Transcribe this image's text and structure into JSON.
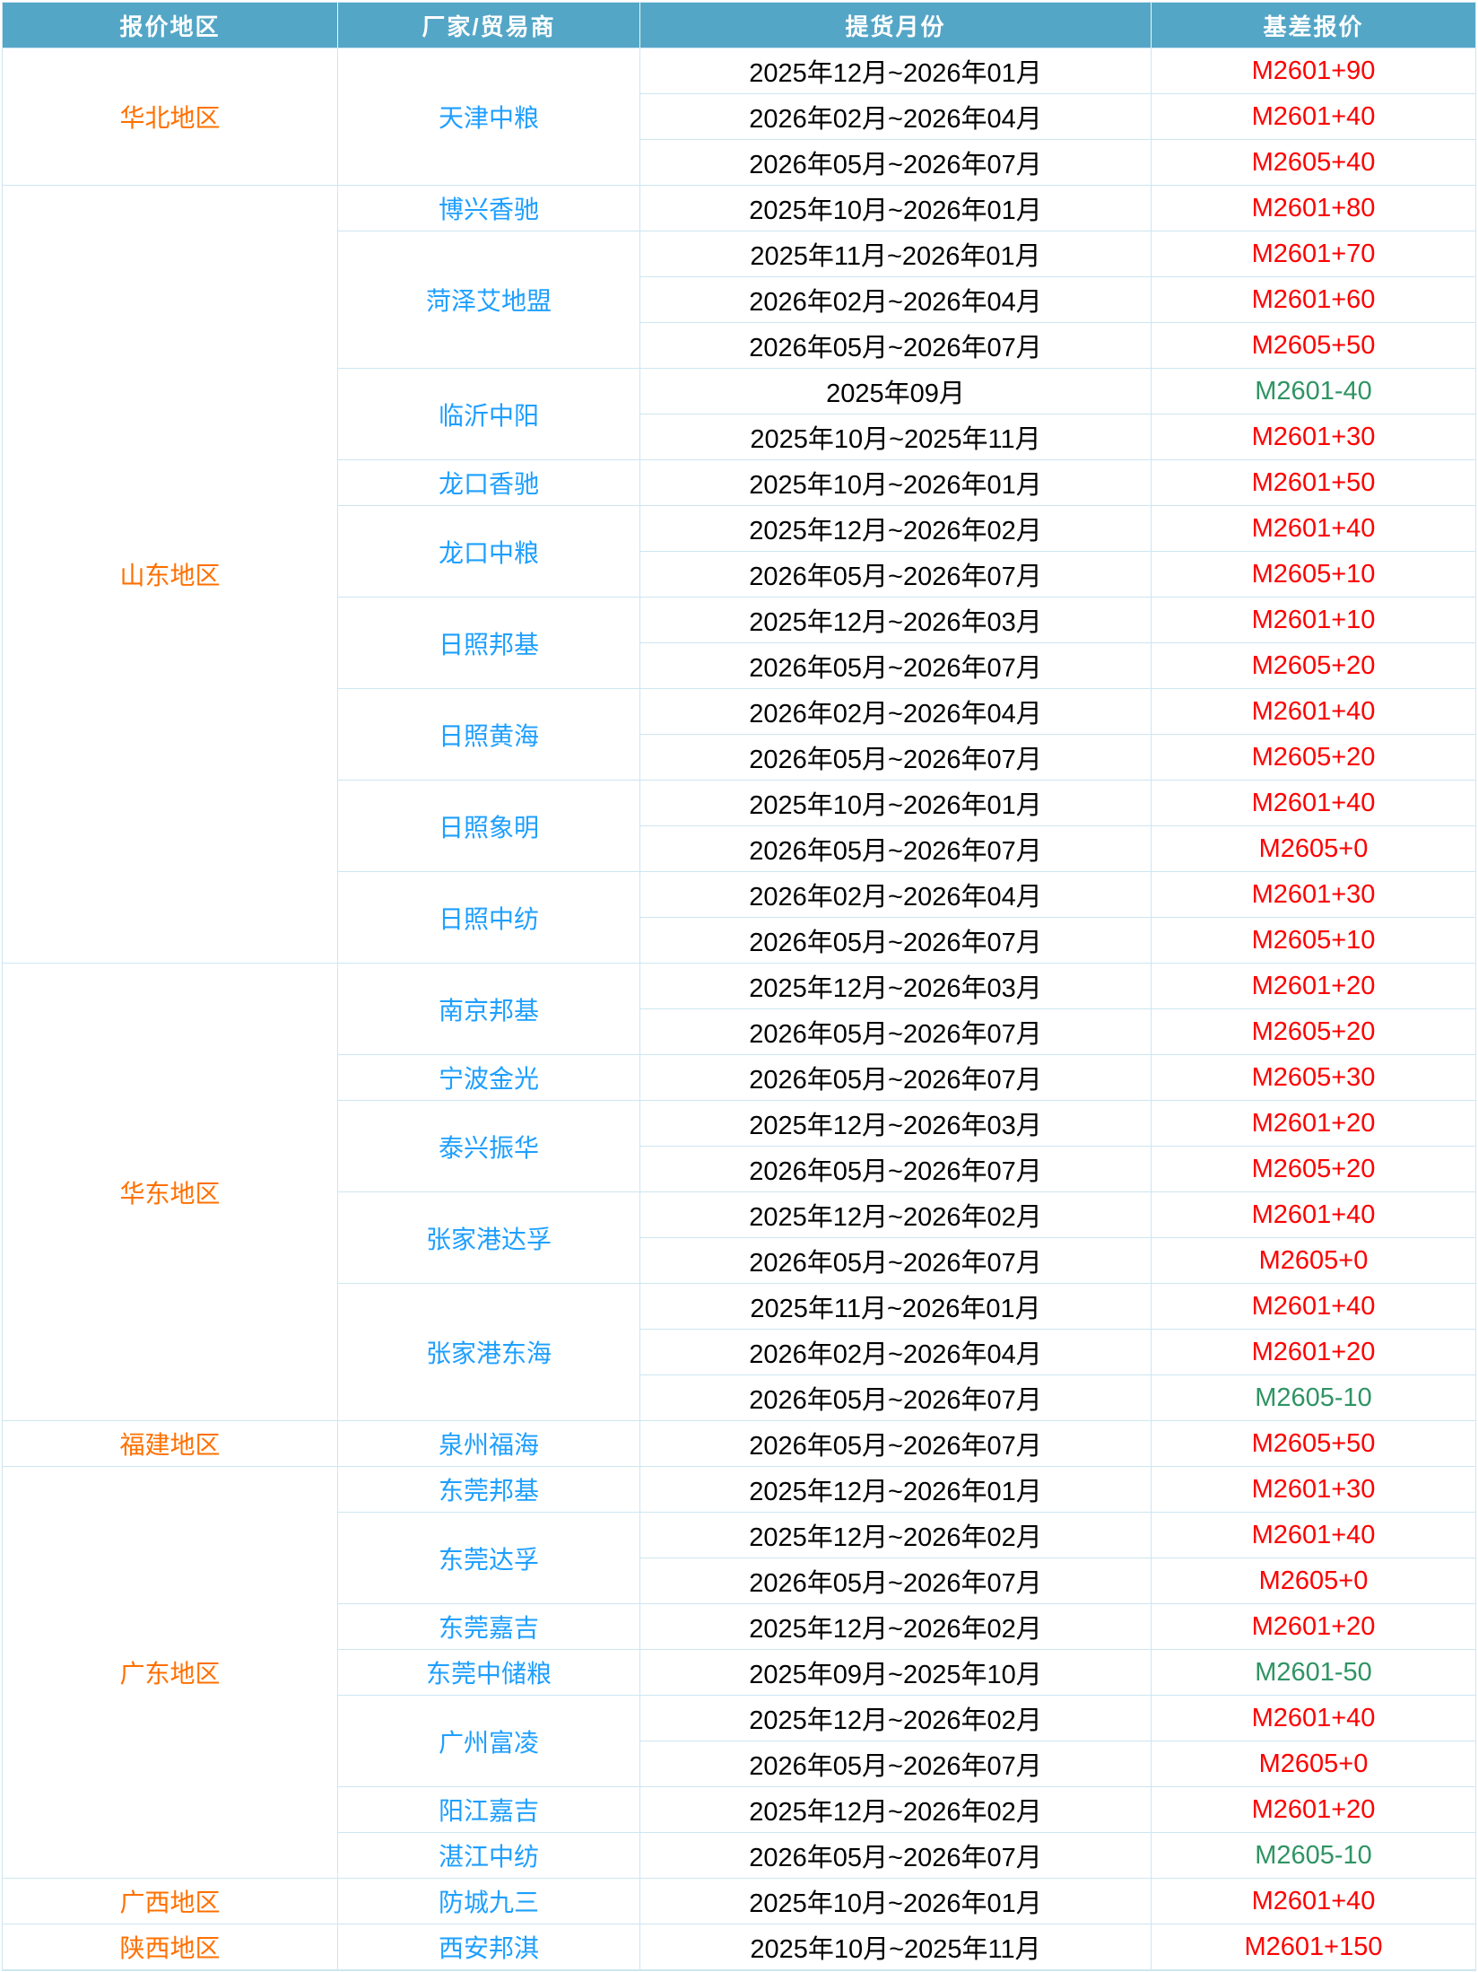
{
  "table": {
    "columns": [
      {
        "label": "报价地区"
      },
      {
        "label": "厂家/贸易商"
      },
      {
        "label": "提货月份"
      },
      {
        "label": "基差报价"
      }
    ],
    "colors": {
      "header_bg": "#54a6c7",
      "header_text": "#ffffff",
      "region_text": "#ff7000",
      "supplier_text": "#1e9fff",
      "month_text": "#000000",
      "basis_positive": "#fe0000",
      "basis_negative": "#2f9464",
      "grid_line": "#cde6f1"
    },
    "regions": [
      {
        "name": "华北地区",
        "suppliers": [
          {
            "name": "天津中粮",
            "quotes": [
              {
                "month": "2025年12月~2026年01月",
                "basis": "M2601+90",
                "tone": "positive"
              },
              {
                "month": "2026年02月~2026年04月",
                "basis": "M2601+40",
                "tone": "positive"
              },
              {
                "month": "2026年05月~2026年07月",
                "basis": "M2605+40",
                "tone": "positive"
              }
            ]
          }
        ]
      },
      {
        "name": "山东地区",
        "suppliers": [
          {
            "name": "博兴香驰",
            "quotes": [
              {
                "month": "2025年10月~2026年01月",
                "basis": "M2601+80",
                "tone": "positive"
              }
            ]
          },
          {
            "name": "菏泽艾地盟",
            "quotes": [
              {
                "month": "2025年11月~2026年01月",
                "basis": "M2601+70",
                "tone": "positive"
              },
              {
                "month": "2026年02月~2026年04月",
                "basis": "M2601+60",
                "tone": "positive"
              },
              {
                "month": "2026年05月~2026年07月",
                "basis": "M2605+50",
                "tone": "positive"
              }
            ]
          },
          {
            "name": "临沂中阳",
            "quotes": [
              {
                "month": "2025年09月",
                "basis": "M2601-40",
                "tone": "negative"
              },
              {
                "month": "2025年10月~2025年11月",
                "basis": "M2601+30",
                "tone": "positive"
              }
            ]
          },
          {
            "name": "龙口香驰",
            "quotes": [
              {
                "month": "2025年10月~2026年01月",
                "basis": "M2601+50",
                "tone": "positive"
              }
            ]
          },
          {
            "name": "龙口中粮",
            "quotes": [
              {
                "month": "2025年12月~2026年02月",
                "basis": "M2601+40",
                "tone": "positive"
              },
              {
                "month": "2026年05月~2026年07月",
                "basis": "M2605+10",
                "tone": "positive"
              }
            ]
          },
          {
            "name": "日照邦基",
            "quotes": [
              {
                "month": "2025年12月~2026年03月",
                "basis": "M2601+10",
                "tone": "positive"
              },
              {
                "month": "2026年05月~2026年07月",
                "basis": "M2605+20",
                "tone": "positive"
              }
            ]
          },
          {
            "name": "日照黄海",
            "quotes": [
              {
                "month": "2026年02月~2026年04月",
                "basis": "M2601+40",
                "tone": "positive"
              },
              {
                "month": "2026年05月~2026年07月",
                "basis": "M2605+20",
                "tone": "positive"
              }
            ]
          },
          {
            "name": "日照象明",
            "quotes": [
              {
                "month": "2025年10月~2026年01月",
                "basis": "M2601+40",
                "tone": "positive"
              },
              {
                "month": "2026年05月~2026年07月",
                "basis": "M2605+0",
                "tone": "positive"
              }
            ]
          },
          {
            "name": "日照中纺",
            "quotes": [
              {
                "month": "2026年02月~2026年04月",
                "basis": "M2601+30",
                "tone": "positive"
              },
              {
                "month": "2026年05月~2026年07月",
                "basis": "M2605+10",
                "tone": "positive"
              }
            ]
          }
        ]
      },
      {
        "name": "华东地区",
        "suppliers": [
          {
            "name": "南京邦基",
            "quotes": [
              {
                "month": "2025年12月~2026年03月",
                "basis": "M2601+20",
                "tone": "positive"
              },
              {
                "month": "2026年05月~2026年07月",
                "basis": "M2605+20",
                "tone": "positive"
              }
            ]
          },
          {
            "name": "宁波金光",
            "quotes": [
              {
                "month": "2026年05月~2026年07月",
                "basis": "M2605+30",
                "tone": "positive"
              }
            ]
          },
          {
            "name": "泰兴振华",
            "quotes": [
              {
                "month": "2025年12月~2026年03月",
                "basis": "M2601+20",
                "tone": "positive"
              },
              {
                "month": "2026年05月~2026年07月",
                "basis": "M2605+20",
                "tone": "positive"
              }
            ]
          },
          {
            "name": "张家港达孚",
            "quotes": [
              {
                "month": "2025年12月~2026年02月",
                "basis": "M2601+40",
                "tone": "positive"
              },
              {
                "month": "2026年05月~2026年07月",
                "basis": "M2605+0",
                "tone": "positive"
              }
            ]
          },
          {
            "name": "张家港东海",
            "quotes": [
              {
                "month": "2025年11月~2026年01月",
                "basis": "M2601+40",
                "tone": "positive"
              },
              {
                "month": "2026年02月~2026年04月",
                "basis": "M2601+20",
                "tone": "positive"
              },
              {
                "month": "2026年05月~2026年07月",
                "basis": "M2605-10",
                "tone": "negative"
              }
            ]
          }
        ]
      },
      {
        "name": "福建地区",
        "suppliers": [
          {
            "name": "泉州福海",
            "quotes": [
              {
                "month": "2026年05月~2026年07月",
                "basis": "M2605+50",
                "tone": "positive"
              }
            ]
          }
        ]
      },
      {
        "name": "广东地区",
        "suppliers": [
          {
            "name": "东莞邦基",
            "quotes": [
              {
                "month": "2025年12月~2026年01月",
                "basis": "M2601+30",
                "tone": "positive"
              }
            ]
          },
          {
            "name": "东莞达孚",
            "quotes": [
              {
                "month": "2025年12月~2026年02月",
                "basis": "M2601+40",
                "tone": "positive"
              },
              {
                "month": "2026年05月~2026年07月",
                "basis": "M2605+0",
                "tone": "positive"
              }
            ]
          },
          {
            "name": "东莞嘉吉",
            "quotes": [
              {
                "month": "2025年12月~2026年02月",
                "basis": "M2601+20",
                "tone": "positive"
              }
            ]
          },
          {
            "name": "东莞中储粮",
            "quotes": [
              {
                "month": "2025年09月~2025年10月",
                "basis": "M2601-50",
                "tone": "negative"
              }
            ]
          },
          {
            "name": "广州富凌",
            "quotes": [
              {
                "month": "2025年12月~2026年02月",
                "basis": "M2601+40",
                "tone": "positive"
              },
              {
                "month": "2026年05月~2026年07月",
                "basis": "M2605+0",
                "tone": "positive"
              }
            ]
          },
          {
            "name": "阳江嘉吉",
            "quotes": [
              {
                "month": "2025年12月~2026年02月",
                "basis": "M2601+20",
                "tone": "positive"
              }
            ]
          },
          {
            "name": "湛江中纺",
            "quotes": [
              {
                "month": "2026年05月~2026年07月",
                "basis": "M2605-10",
                "tone": "negative"
              }
            ]
          }
        ]
      },
      {
        "name": "广西地区",
        "suppliers": [
          {
            "name": "防城九三",
            "quotes": [
              {
                "month": "2025年10月~2026年01月",
                "basis": "M2601+40",
                "tone": "positive"
              }
            ]
          }
        ]
      },
      {
        "name": "陕西地区",
        "suppliers": [
          {
            "name": "西安邦淇",
            "quotes": [
              {
                "month": "2025年10月~2025年11月",
                "basis": "M2601+150",
                "tone": "positive"
              }
            ]
          }
        ]
      }
    ]
  }
}
